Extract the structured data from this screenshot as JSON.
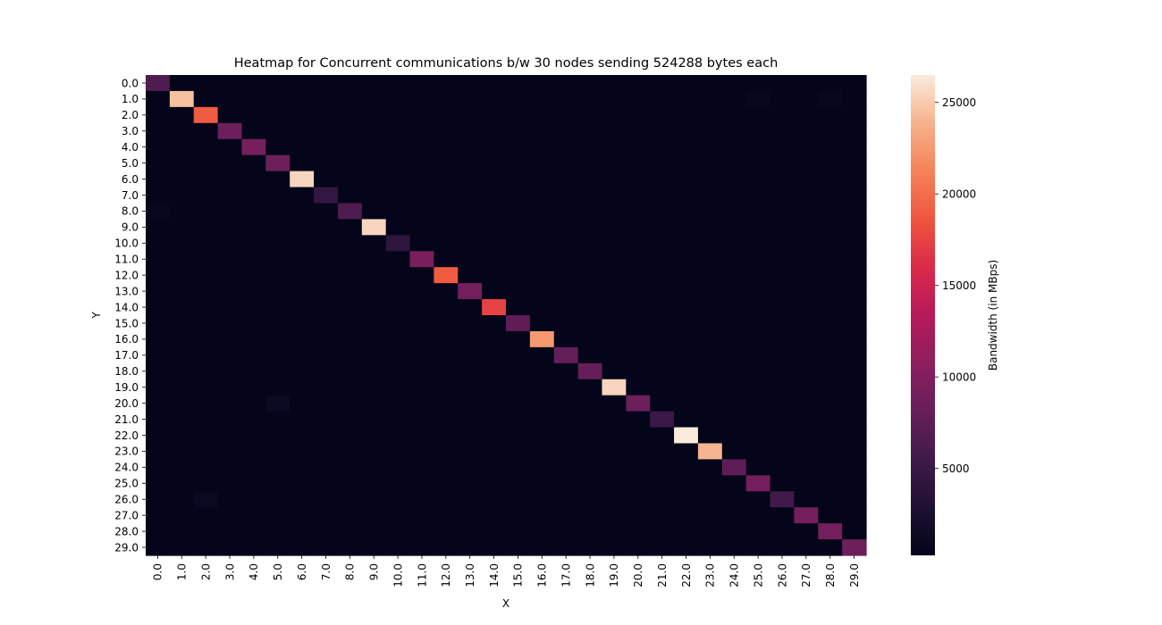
{
  "chart_data": {
    "type": "heatmap",
    "title": "Heatmap for Concurrent communications b/w 30 nodes sending 524288 bytes each",
    "xlabel": "X",
    "ylabel": "Y",
    "x": [
      "0.0",
      "1.0",
      "2.0",
      "3.0",
      "4.0",
      "5.0",
      "6.0",
      "7.0",
      "8.0",
      "9.0",
      "10.0",
      "11.0",
      "12.0",
      "13.0",
      "14.0",
      "15.0",
      "16.0",
      "17.0",
      "18.0",
      "19.0",
      "20.0",
      "21.0",
      "22.0",
      "23.0",
      "24.0",
      "25.0",
      "26.0",
      "27.0",
      "28.0",
      "29.0"
    ],
    "y": [
      "0.0",
      "1.0",
      "2.0",
      "3.0",
      "4.0",
      "5.0",
      "6.0",
      "7.0",
      "8.0",
      "9.0",
      "10.0",
      "11.0",
      "12.0",
      "13.0",
      "14.0",
      "15.0",
      "16.0",
      "17.0",
      "18.0",
      "19.0",
      "20.0",
      "21.0",
      "22.0",
      "23.0",
      "24.0",
      "25.0",
      "26.0",
      "27.0",
      "28.0",
      "29.0"
    ],
    "diagonal_values": [
      6500,
      24500,
      19000,
      8500,
      9000,
      8500,
      25500,
      4500,
      6500,
      25500,
      4000,
      9500,
      19000,
      9000,
      17500,
      7500,
      22500,
      8000,
      8000,
      25500,
      8500,
      5000,
      26500,
      24000,
      7500,
      9000,
      5500,
      9000,
      9000,
      8500
    ],
    "off_diagonal_value": 300,
    "off_diagonal_exceptions": [
      {
        "x": "5.0",
        "y": "20.0",
        "value": 1100
      },
      {
        "x": "2.0",
        "y": "26.0",
        "value": 1000
      },
      {
        "x": "0.0",
        "y": "8.0",
        "value": 700
      },
      {
        "x": "25.0",
        "y": "1.0",
        "value": 600
      },
      {
        "x": "28.0",
        "y": "1.0",
        "value": 600
      }
    ],
    "colorbar": {
      "label": "Bandwidth (in MBps)",
      "vmin": 250,
      "vmax": 26500,
      "ticks": [
        5000,
        10000,
        15000,
        20000,
        25000
      ],
      "colormap": "rocket"
    },
    "grid": false
  }
}
